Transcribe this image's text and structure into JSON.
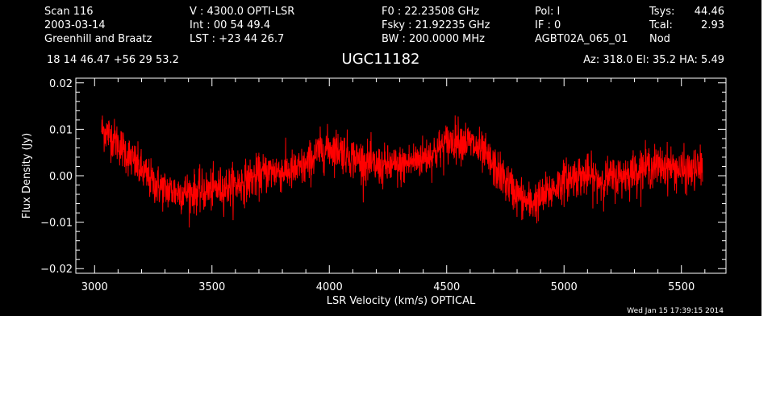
{
  "header": {
    "col1": [
      "Scan        116",
      "2003-03-14",
      "Greenhill and Braatz"
    ],
    "col2": [
      "V   :     4300.0 OPTI-LSR",
      "Int  :  00 54 49.4",
      "LST : +23 44 26.7"
    ],
    "col3": [
      "F0   :  22.23508 GHz",
      "Fsky :  21.92235 GHz",
      "BW   : 200.0000 MHz"
    ],
    "col4": [
      "Pol:     I",
      "IF :     0",
      "AGBT02A_065_01"
    ],
    "col5": [
      "Tsys:",
      "Tcal:",
      "Nod"
    ],
    "col6": [
      "44.46",
      "2.93",
      ""
    ],
    "coords": "18 14 46.47  +56 29 53.2",
    "object": "UGC11182",
    "azelha": "Az: 318.0   El:  35.2   HA:  5.49"
  },
  "footer": {
    "timestamp": "Wed Jan 15 17:39:15 2014"
  },
  "colors": {
    "background": "#000000",
    "axes": "#ffffff",
    "series": "#ff0000"
  },
  "chart_data": {
    "type": "line",
    "xlabel": "LSR Velocity (km/s) OPTICAL",
    "ylabel": "Flux Density (Jy)",
    "xlim": [
      2920,
      5690
    ],
    "ylim": [
      -0.021,
      0.021
    ],
    "xticks": [
      3000,
      3500,
      4000,
      4500,
      5000,
      5500
    ],
    "yticks": [
      -0.02,
      -0.01,
      0.0,
      0.01,
      0.02
    ],
    "xtick_labels": [
      "3000",
      "3500",
      "4000",
      "4500",
      "5000",
      "5500"
    ],
    "ytick_labels": [
      "−0.02",
      "−0.01",
      "0.00",
      "0.01",
      "0.02"
    ],
    "x_range": [
      3030,
      5590
    ],
    "noise_rms": 0.0022,
    "series": [
      {
        "x": [
          3030,
          3060,
          3100,
          3150,
          3200,
          3250,
          3300,
          3350,
          3400,
          3450,
          3500,
          3550,
          3600,
          3650,
          3700,
          3750,
          3800,
          3850,
          3900,
          3950,
          4000,
          4050,
          4100,
          4150,
          4200,
          4250,
          4300,
          4350,
          4400,
          4450,
          4500,
          4550,
          4600,
          4650,
          4700,
          4750,
          4800,
          4850,
          4900,
          4950,
          5000,
          5050,
          5100,
          5150,
          5200,
          5250,
          5300,
          5350,
          5400,
          5450,
          5500,
          5550,
          5590
        ],
        "values": [
          0.01,
          0.009,
          0.007,
          0.004,
          0.001,
          -0.0015,
          -0.003,
          -0.0035,
          -0.0035,
          -0.0035,
          -0.003,
          -0.0025,
          -0.002,
          -0.001,
          0.0,
          0.001,
          0.001,
          0.001,
          0.002,
          0.005,
          0.006,
          0.0055,
          0.004,
          0.003,
          0.002,
          0.002,
          0.002,
          0.003,
          0.004,
          0.005,
          0.007,
          0.008,
          0.007,
          0.005,
          0.002,
          -0.001,
          -0.004,
          -0.006,
          -0.005,
          -0.003,
          -0.001,
          0.0,
          0.0,
          -0.001,
          -0.0005,
          0.0,
          0.001,
          0.002,
          0.002,
          0.002,
          0.001,
          0.001,
          0.002
        ]
      }
    ]
  }
}
